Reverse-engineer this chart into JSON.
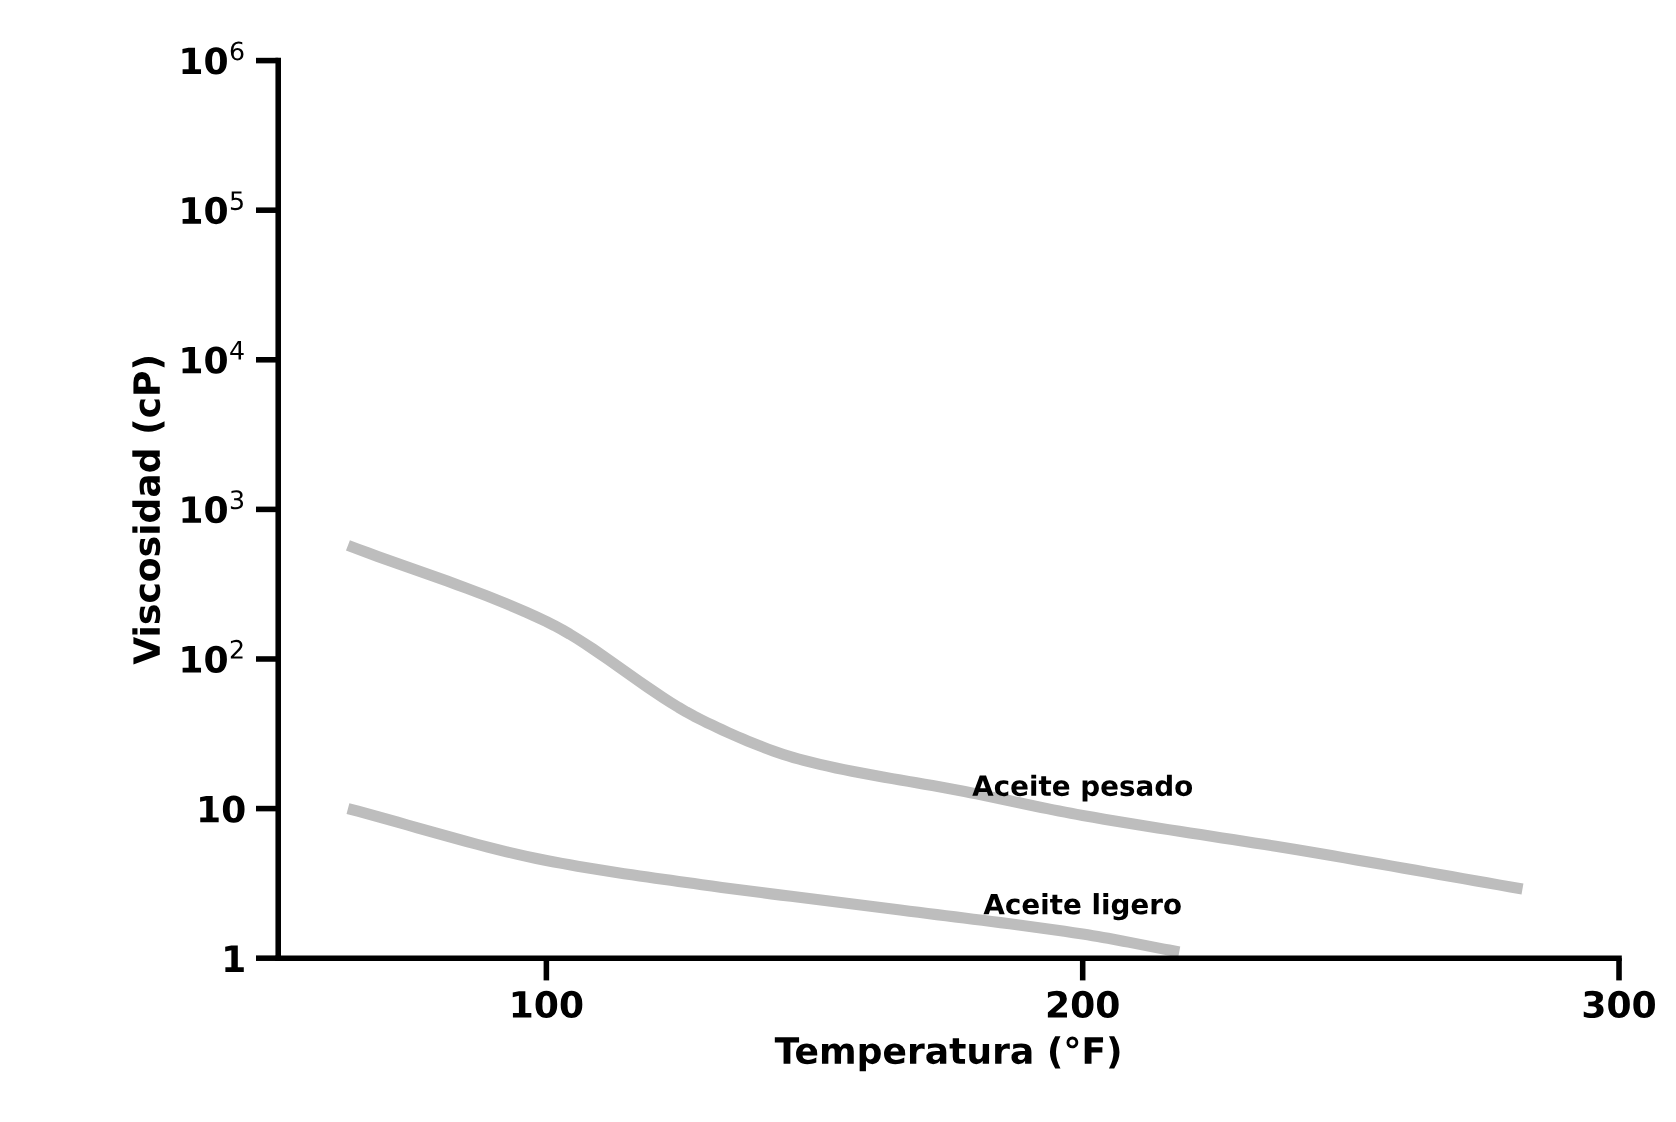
{
  "chart_data": {
    "type": "line",
    "xlabel": "Temperatura (°F)",
    "ylabel": "Viscosidad (cP)",
    "log": "y",
    "xlim": [
      50,
      300
    ],
    "xticks": [
      100,
      200,
      300
    ],
    "ylim": [
      1,
      1000000
    ],
    "yticks": [
      1,
      10,
      {
        "value": 100,
        "label": "10$^{2}$"
      },
      {
        "value": 1000,
        "label": "10$^{3}$"
      },
      {
        "value": 10000,
        "label": "10$^{4}$"
      },
      {
        "value": 100000,
        "label": "10$^{5}$"
      },
      {
        "value": 1000000,
        "label": "10$^{6}$"
      }
    ],
    "grid": false,
    "legend": false,
    "marker": "none",
    "line_style": "solid",
    "series": [
      {
        "name": "Aceite pesado",
        "color": "#bdbdbd",
        "x": [
          63,
          100,
          129,
          148,
          178,
          200,
          240,
          282
        ],
        "values": [
          575,
          178,
          39,
          21,
          13,
          9,
          5.3,
          2.9
        ]
      },
      {
        "name": "Aceite ligero",
        "color": "#bdbdbd",
        "x": [
          63,
          100,
          129,
          166,
          200,
          218
        ],
        "values": [
          10,
          4.5,
          3.1,
          2.1,
          1.45,
          1.1
        ]
      }
    ]
  }
}
